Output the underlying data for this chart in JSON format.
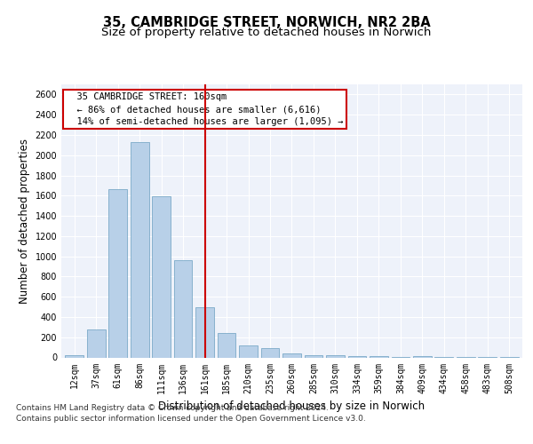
{
  "title_line1": "35, CAMBRIDGE STREET, NORWICH, NR2 2BA",
  "title_line2": "Size of property relative to detached houses in Norwich",
  "xlabel": "Distribution of detached houses by size in Norwich",
  "ylabel": "Number of detached properties",
  "categories": [
    "12sqm",
    "37sqm",
    "61sqm",
    "86sqm",
    "111sqm",
    "136sqm",
    "161sqm",
    "185sqm",
    "210sqm",
    "235sqm",
    "260sqm",
    "285sqm",
    "310sqm",
    "334sqm",
    "359sqm",
    "384sqm",
    "409sqm",
    "434sqm",
    "458sqm",
    "483sqm",
    "508sqm"
  ],
  "values": [
    25,
    280,
    1660,
    2130,
    1590,
    960,
    500,
    240,
    120,
    95,
    40,
    25,
    18,
    12,
    10,
    6,
    15,
    4,
    3,
    1,
    8
  ],
  "bar_color": "#b8d0e8",
  "bar_edge_color": "#6a9fc0",
  "bar_edge_width": 0.5,
  "marker_index": 6,
  "marker_color": "#cc0000",
  "annotation_text": "  35 CAMBRIDGE STREET: 160sqm\n  ← 86% of detached houses are smaller (6,616)\n  14% of semi-detached houses are larger (1,095) →",
  "annotation_box_color": "#cc0000",
  "ylim": [
    0,
    2700
  ],
  "yticks": [
    0,
    200,
    400,
    600,
    800,
    1000,
    1200,
    1400,
    1600,
    1800,
    2000,
    2200,
    2400,
    2600
  ],
  "background_color": "#eef2fa",
  "footer_line1": "Contains HM Land Registry data © Crown copyright and database right 2024.",
  "footer_line2": "Contains public sector information licensed under the Open Government Licence v3.0.",
  "title_fontsize": 10.5,
  "subtitle_fontsize": 9.5,
  "axis_label_fontsize": 8.5,
  "tick_fontsize": 7,
  "annotation_fontsize": 7.5,
  "footer_fontsize": 6.5
}
